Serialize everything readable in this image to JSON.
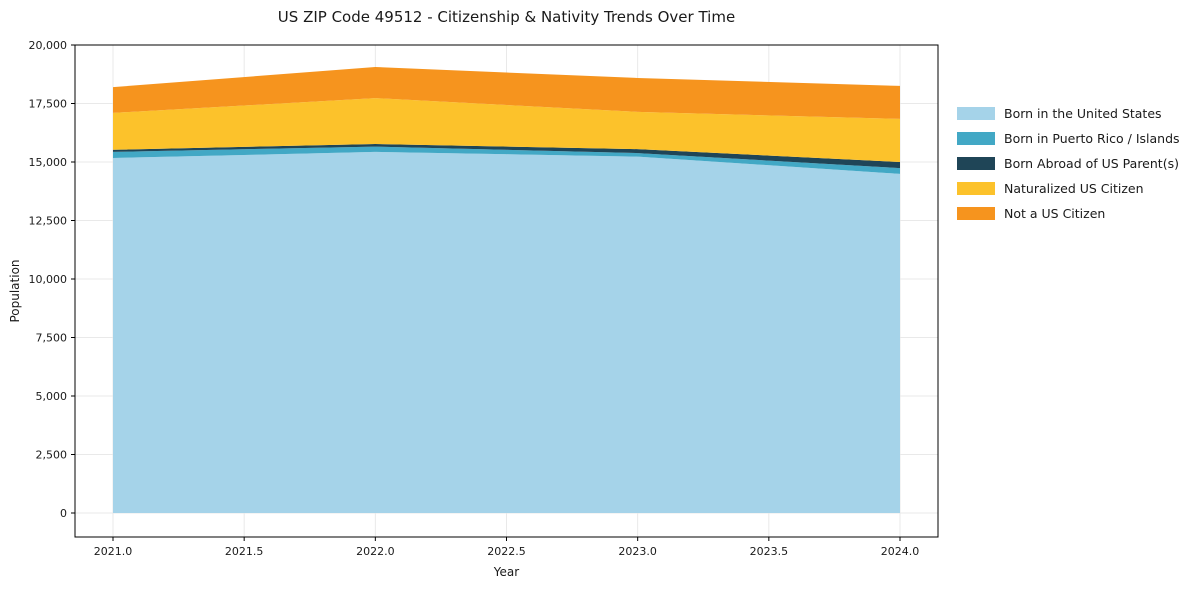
{
  "chart_data": {
    "type": "area",
    "stacked": true,
    "title": "US ZIP Code 49512 - Citizenship & Nativity Trends Over Time",
    "xlabel": "Year",
    "ylabel": "Population",
    "x": [
      2021,
      2022,
      2023,
      2024
    ],
    "series": [
      {
        "name": "Born in the United States",
        "color": "#A5D3E9",
        "values": [
          15170,
          15430,
          15230,
          14490
        ]
      },
      {
        "name": "Born in Puerto Rico / Islands",
        "color": "#42A8C5",
        "values": [
          260,
          230,
          150,
          250
        ]
      },
      {
        "name": "Born Abroad of US Parent(s)",
        "color": "#1F4557",
        "values": [
          90,
          110,
          170,
          260
        ]
      },
      {
        "name": "Naturalized US Citizen",
        "color": "#FCC22B",
        "values": [
          1580,
          1960,
          1590,
          1840
        ]
      },
      {
        "name": "Not a US Citizen",
        "color": "#F6941E",
        "values": [
          1100,
          1330,
          1450,
          1410
        ]
      }
    ],
    "stacked_totals": [
      18200,
      19060,
      18590,
      18250
    ],
    "ylim": [
      0,
      20000
    ],
    "yticks": {
      "values": [
        0,
        2500,
        5000,
        7500,
        10000,
        12500,
        15000,
        17500,
        20000
      ],
      "labels": [
        "0",
        "2,500",
        "5,000",
        "7,500",
        "10,000",
        "12,500",
        "15,000",
        "17,500",
        "20,000"
      ]
    },
    "xticks": {
      "values": [
        2021.0,
        2021.5,
        2022.0,
        2022.5,
        2023.0,
        2023.5,
        2024.0
      ],
      "labels": [
        "2021.0",
        "2021.5",
        "2022.0",
        "2022.5",
        "2023.0",
        "2023.5",
        "2024.0"
      ]
    },
    "grid": true,
    "legend_position": "right",
    "style": {
      "background": "#ffffff",
      "grid_color": "#e9e9e9",
      "spine_color": "#000000",
      "text_color": "#1a1a1a"
    }
  }
}
